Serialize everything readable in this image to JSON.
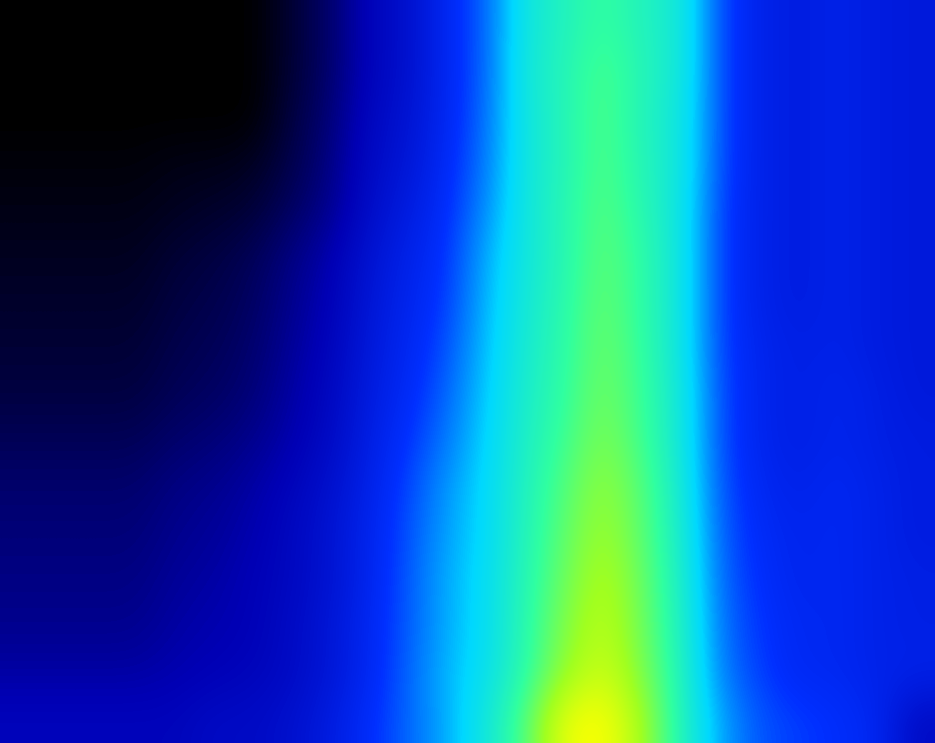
{
  "chart_data": {
    "type": "heatmap",
    "tick_labels": false,
    "cells": [
      [
        0,
        0,
        0,
        0,
        0,
        0,
        0,
        0.5,
        1,
        1.8,
        2.2,
        3,
        3.8,
        5.5,
        6,
        6.6,
        6,
        5.6,
        3.5,
        2.8,
        2.6,
        2.8,
        2.6,
        2.5
      ],
      [
        0,
        0,
        0,
        0,
        0,
        0,
        0,
        0.5,
        1,
        1.8,
        2.2,
        3,
        3.8,
        5.6,
        6.1,
        6.9,
        6.1,
        5.6,
        3.5,
        2.8,
        2.6,
        2.8,
        2.6,
        2.5
      ],
      [
        0,
        0,
        0,
        0,
        0,
        0,
        0,
        0.6,
        1.1,
        1.9,
        2.3,
        3,
        3.9,
        5.5,
        6.1,
        7,
        6,
        5.5,
        3.5,
        2.8,
        2.6,
        2.8,
        2.6,
        2.5
      ],
      [
        0.1,
        0.1,
        0.1,
        0.1,
        0.2,
        0.2,
        0.3,
        0.7,
        1.2,
        2,
        2.4,
        3.1,
        4,
        5.5,
        6.1,
        7,
        6.1,
        5.5,
        3.5,
        2.8,
        2.6,
        2.8,
        2.6,
        2.5
      ],
      [
        0.2,
        0.2,
        0.2,
        0.2,
        0.3,
        0.4,
        0.5,
        0.9,
        1.3,
        2.1,
        2.6,
        3.2,
        4.2,
        5.5,
        6.2,
        7.1,
        6.2,
        5.4,
        3.4,
        2.8,
        2.6,
        2.8,
        2.6,
        2.5
      ],
      [
        0.3,
        0.3,
        0.3,
        0.3,
        0.5,
        0.6,
        0.8,
        1.2,
        1.6,
        2.3,
        2.8,
        3.3,
        4.5,
        5.5,
        6.2,
        7.2,
        6.4,
        5.4,
        3.4,
        2.8,
        2.6,
        2.8,
        2.6,
        2.5
      ],
      [
        0.4,
        0.4,
        0.4,
        0.4,
        0.6,
        0.7,
        0.9,
        1.3,
        1.7,
        2.4,
        2.9,
        3.4,
        4.6,
        5.6,
        6.3,
        7.3,
        6.4,
        5.4,
        3.4,
        2.8,
        2.6,
        2.8,
        2.6,
        2.5
      ],
      [
        0.5,
        0.5,
        0.5,
        0.5,
        0.7,
        0.8,
        1,
        1.4,
        1.8,
        2.5,
        3,
        3.6,
        4.7,
        5.7,
        6.4,
        7.4,
        6.5,
        5.4,
        3.4,
        2.9,
        2.7,
        2.8,
        2.6,
        2.5
      ],
      [
        0.6,
        0.6,
        0.6,
        0.6,
        0.8,
        0.9,
        1.1,
        1.5,
        1.9,
        2.6,
        3.1,
        3.8,
        4.8,
        5.8,
        6.5,
        7.5,
        6.6,
        5.5,
        3.5,
        2.9,
        2.7,
        2.9,
        2.7,
        2.5
      ],
      [
        0.8,
        0.8,
        0.8,
        0.8,
        1,
        1.1,
        1.3,
        1.6,
        2,
        2.7,
        3.3,
        4,
        4.9,
        5.9,
        6.7,
        7.7,
        6.7,
        5.5,
        3.5,
        2.9,
        2.7,
        2.9,
        2.7,
        2.6
      ],
      [
        1,
        1,
        1,
        1,
        1.2,
        1.3,
        1.5,
        1.8,
        2.2,
        2.8,
        3.5,
        4.3,
        5,
        6,
        7,
        8,
        7,
        5.6,
        3.6,
        3,
        2.8,
        3,
        2.8,
        2.6
      ],
      [
        1.1,
        1.1,
        1.1,
        1.1,
        1.3,
        1.4,
        1.6,
        1.9,
        2.3,
        2.9,
        3.6,
        4.4,
        5,
        6.1,
        7.2,
        8.2,
        7.1,
        5.7,
        3.7,
        3.1,
        2.9,
        3,
        2.8,
        2.6
      ],
      [
        1.2,
        1.2,
        1.2,
        1.2,
        1.4,
        1.5,
        1.7,
        1.9,
        2.3,
        2.9,
        3.7,
        4.5,
        5.1,
        6.2,
        7.4,
        8.5,
        7.3,
        5.8,
        3.8,
        3.2,
        2.9,
        3,
        2.8,
        2.7
      ],
      [
        1.3,
        1.3,
        1.3,
        1.3,
        1.5,
        1.6,
        1.7,
        2,
        2.4,
        3,
        3.7,
        4.5,
        5.1,
        6.3,
        7.7,
        8.7,
        7.4,
        5.9,
        3.9,
        3.3,
        3,
        3,
        2.8,
        2.7
      ],
      [
        1.5,
        1.5,
        1.5,
        1.5,
        1.6,
        1.7,
        1.8,
        2,
        2.4,
        3,
        3.8,
        4.6,
        5.2,
        6.4,
        8,
        9,
        7.6,
        6,
        4,
        3.4,
        3,
        3,
        2.8,
        2.8
      ],
      [
        1.8,
        1.8,
        1.8,
        1.8,
        1.8,
        2,
        2,
        2.2,
        2.6,
        3.2,
        3.8,
        4.5,
        5.5,
        7,
        9.5,
        9.8,
        8.2,
        6,
        4.4,
        3.6,
        3.4,
        3.2,
        3,
        2
      ]
    ]
  }
}
